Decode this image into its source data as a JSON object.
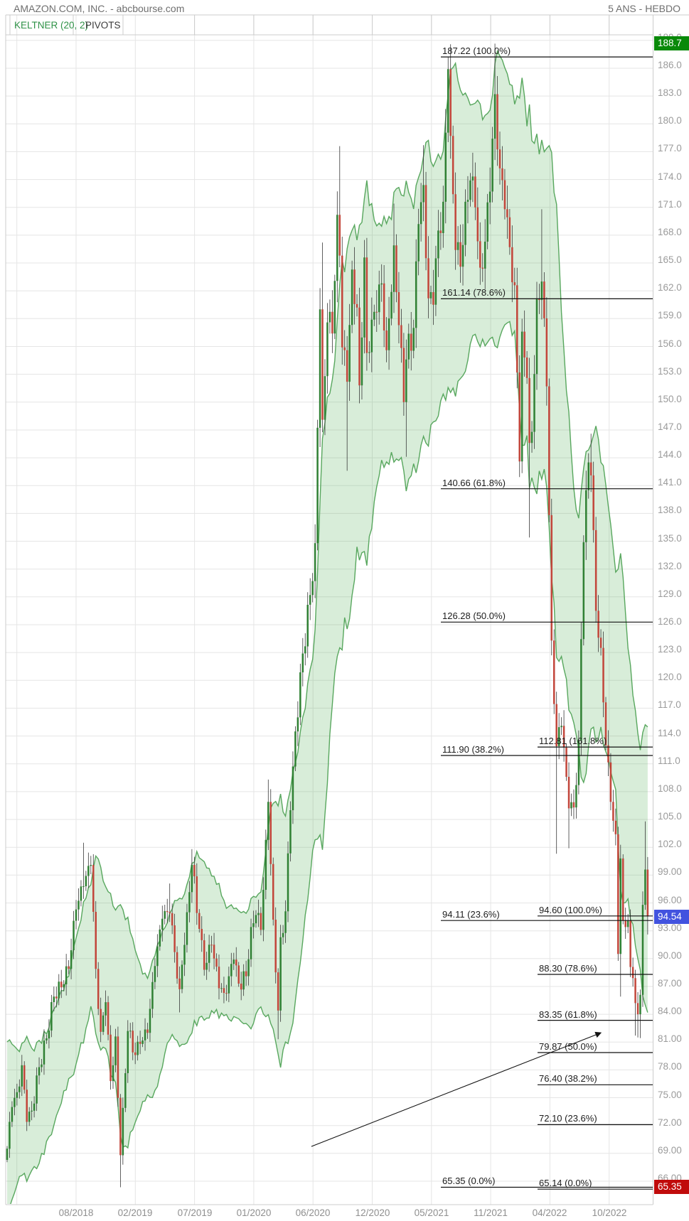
{
  "header": {
    "title": "AMAZON.COM, INC. - abcbourse.com",
    "period": "5 ANS - HEBDO"
  },
  "tabs": {
    "keltner": "KELTNER (20, 2)",
    "pivots": "PIVOTS"
  },
  "markers": {
    "high": {
      "label": "188.7",
      "color": "#098909"
    },
    "last": {
      "label": "94.54",
      "color": "#4253df"
    },
    "low": {
      "label": "65.35",
      "color": "#c00b0b"
    }
  },
  "chart_data": {
    "type": "candlestick",
    "title": "AMAZON.COM, INC.",
    "source": "abcbourse.com",
    "timeframe": "weekly",
    "range_label": "5 ANS - HEBDO",
    "overlay": {
      "name": "Keltner",
      "period": 20,
      "mult": 2
    },
    "y_axis": {
      "min": 66,
      "max": 189,
      "grid_step": 3,
      "ticks": [
        "189.0",
        "186.0",
        "183.0",
        "180.0",
        "177.0",
        "174.0",
        "171.0",
        "168.0",
        "165.0",
        "162.0",
        "159.0",
        "156.0",
        "153.0",
        "150.0",
        "147.0",
        "144.0",
        "141.0",
        "138.0",
        "135.0",
        "132.0",
        "129.0",
        "126.0",
        "123.0",
        "120.0",
        "117.0",
        "114.0",
        "111.0",
        "108.0",
        "105.0",
        "102.0",
        "99.00",
        "96.00",
        "93.00",
        "90.00",
        "87.00",
        "84.00",
        "81.00",
        "78.00",
        "75.00",
        "72.00",
        "69.00",
        "66.00"
      ]
    },
    "x_axis": {
      "labels": [
        "08/2018",
        "02/2019",
        "07/2019",
        "01/2020",
        "06/2020",
        "12/2020",
        "05/2021",
        "11/2021",
        "04/2022",
        "10/2022"
      ]
    },
    "weeks": 261,
    "close_anchors": [
      [
        0,
        69.5
      ],
      [
        2,
        74.0
      ],
      [
        4,
        75.6
      ],
      [
        6,
        78.5
      ],
      [
        8,
        72.4
      ],
      [
        10,
        73.6
      ],
      [
        13,
        78.3
      ],
      [
        16,
        81.4
      ],
      [
        19,
        85.9
      ],
      [
        22,
        86.9
      ],
      [
        25,
        88.9
      ],
      [
        28,
        95.3
      ],
      [
        31,
        97.8
      ],
      [
        34,
        100.1
      ],
      [
        36,
        88.9
      ],
      [
        38,
        82.1
      ],
      [
        40,
        85.3
      ],
      [
        42,
        76.8
      ],
      [
        44,
        81.6
      ],
      [
        46,
        68.8
      ],
      [
        47,
        73.9
      ],
      [
        49,
        82.2
      ],
      [
        52,
        79.6
      ],
      [
        54,
        80.8
      ],
      [
        57,
        82.0
      ],
      [
        60,
        89.2
      ],
      [
        63,
        94.3
      ],
      [
        66,
        94.9
      ],
      [
        68,
        90.7
      ],
      [
        70,
        86.7
      ],
      [
        73,
        95.0
      ],
      [
        75,
        100.1
      ],
      [
        78,
        93.2
      ],
      [
        80,
        88.8
      ],
      [
        83,
        91.5
      ],
      [
        86,
        86.8
      ],
      [
        88,
        86.3
      ],
      [
        90,
        88.1
      ],
      [
        92,
        89.9
      ],
      [
        94,
        87.3
      ],
      [
        97,
        88.1
      ],
      [
        99,
        93.4
      ],
      [
        101,
        94.7
      ],
      [
        103,
        93.1
      ],
      [
        105,
        102.8
      ],
      [
        106,
        106.9
      ],
      [
        107,
        100.2
      ],
      [
        108,
        94.2
      ],
      [
        110,
        84.4
      ],
      [
        111,
        92.3
      ],
      [
        113,
        95.1
      ],
      [
        115,
        106.0
      ],
      [
        117,
        114.5
      ],
      [
        120,
        122.9
      ],
      [
        123,
        129.2
      ],
      [
        125,
        134.8
      ],
      [
        127,
        160.0
      ],
      [
        128,
        148.1
      ],
      [
        130,
        158.6
      ],
      [
        132,
        157.4
      ],
      [
        134,
        170.2
      ],
      [
        135,
        165.8
      ],
      [
        136,
        155.9
      ],
      [
        138,
        152.2
      ],
      [
        140,
        164.3
      ],
      [
        142,
        160.2
      ],
      [
        143,
        151.8
      ],
      [
        145,
        165.6
      ],
      [
        146,
        155.3
      ],
      [
        148,
        158.9
      ],
      [
        150,
        159.7
      ],
      [
        152,
        162.8
      ],
      [
        154,
        155.6
      ],
      [
        157,
        166.9
      ],
      [
        159,
        158.3
      ],
      [
        161,
        150.0
      ],
      [
        162,
        154.6
      ],
      [
        165,
        158.0
      ],
      [
        167,
        169.2
      ],
      [
        169,
        173.4
      ],
      [
        171,
        161.2
      ],
      [
        173,
        160.5
      ],
      [
        175,
        168.5
      ],
      [
        177,
        171.6
      ],
      [
        179,
        185.9
      ],
      [
        180,
        178.7
      ],
      [
        182,
        166.4
      ],
      [
        184,
        164.6
      ],
      [
        186,
        171.6
      ],
      [
        188,
        173.9
      ],
      [
        190,
        171.0
      ],
      [
        192,
        164.5
      ],
      [
        194,
        167.3
      ],
      [
        196,
        172.7
      ],
      [
        198,
        183.2
      ],
      [
        200,
        175.2
      ],
      [
        202,
        170.8
      ],
      [
        204,
        166.7
      ],
      [
        206,
        162.6
      ],
      [
        208,
        143.6
      ],
      [
        209,
        157.6
      ],
      [
        211,
        152.6
      ],
      [
        212,
        145.6
      ],
      [
        213,
        146.8
      ],
      [
        215,
        161.1
      ],
      [
        217,
        163.0
      ],
      [
        219,
        151.7
      ],
      [
        221,
        124.3
      ],
      [
        223,
        112.9
      ],
      [
        225,
        115.1
      ],
      [
        227,
        109.6
      ],
      [
        228,
        106.2
      ],
      [
        230,
        106.3
      ],
      [
        232,
        113.5
      ],
      [
        234,
        134.9
      ],
      [
        236,
        143.5
      ],
      [
        237,
        142.1
      ],
      [
        239,
        127.5
      ],
      [
        241,
        123.5
      ],
      [
        243,
        113.0
      ],
      [
        245,
        106.9
      ],
      [
        247,
        103.4
      ],
      [
        248,
        90.5
      ],
      [
        249,
        100.8
      ],
      [
        250,
        94.1
      ],
      [
        251,
        93.4
      ],
      [
        252,
        94.1
      ],
      [
        253,
        89.1
      ],
      [
        254,
        87.9
      ],
      [
        255,
        85.2
      ],
      [
        256,
        84.0
      ],
      [
        257,
        86.1
      ],
      [
        258,
        95.8
      ],
      [
        259,
        99.6
      ],
      [
        260,
        94.54
      ]
    ],
    "spikes": [
      [
        31,
        "h",
        102.5
      ],
      [
        46,
        "l",
        65.35
      ],
      [
        66,
        "h",
        98.1
      ],
      [
        70,
        "l",
        84.2
      ],
      [
        75,
        "h",
        101.8
      ],
      [
        106,
        "h",
        109.3
      ],
      [
        110,
        "l",
        81.3
      ],
      [
        128,
        "h",
        167.2
      ],
      [
        135,
        "h",
        177.6
      ],
      [
        138,
        "l",
        142.6
      ],
      [
        157,
        "h",
        171.4
      ],
      [
        162,
        "l",
        144.1
      ],
      [
        169,
        "h",
        177.7
      ],
      [
        179,
        "h",
        187.22
      ],
      [
        198,
        "h",
        188.65
      ],
      [
        212,
        "l",
        135.4
      ],
      [
        217,
        "h",
        170.8
      ],
      [
        223,
        "l",
        101.3
      ],
      [
        228,
        "l",
        101.9
      ],
      [
        237,
        "h",
        146.6
      ],
      [
        249,
        "l",
        85.9
      ],
      [
        255,
        "l",
        81.7
      ],
      [
        256,
        "l",
        81.5
      ],
      [
        257,
        "l",
        81.43
      ],
      [
        259,
        "h",
        104.8
      ],
      [
        260,
        "l",
        92.6
      ]
    ],
    "fib_major": {
      "levels": [
        {
          "price": 187.22,
          "pct": "100.0%"
        },
        {
          "price": 161.14,
          "pct": "78.6%"
        },
        {
          "price": 140.66,
          "pct": "61.8%"
        },
        {
          "price": 126.28,
          "pct": "50.0%"
        },
        {
          "price": 111.9,
          "pct": "38.2%"
        },
        {
          "price": 94.11,
          "pct": "23.6%"
        },
        {
          "price": 65.35,
          "pct": "0.0%"
        }
      ]
    },
    "fib_minor": {
      "levels": [
        {
          "price": 112.81,
          "pct": "161.8%"
        },
        {
          "price": 94.6,
          "pct": "100.0%"
        },
        {
          "price": 88.3,
          "pct": "78.6%"
        },
        {
          "price": 83.35,
          "pct": "61.8%"
        },
        {
          "price": 79.87,
          "pct": "50.0%"
        },
        {
          "price": 76.4,
          "pct": "38.2%"
        },
        {
          "price": 72.1,
          "pct": "23.6%"
        },
        {
          "price": 65.14,
          "pct": "0.0%"
        }
      ]
    },
    "arrow": {
      "from": {
        "week": 123.5,
        "price": 69.75
      },
      "to": {
        "week": 241.0,
        "price": 82.0
      }
    },
    "colors": {
      "candle_up": "#2f8033",
      "candle_down": "#c2453a",
      "wick": "#3a3a3a",
      "keltner_line": "#58a75e",
      "keltner_fill": "#4caf50",
      "grid": "#e5e5e5",
      "border": "#cccccc",
      "fib": "#111111"
    }
  }
}
